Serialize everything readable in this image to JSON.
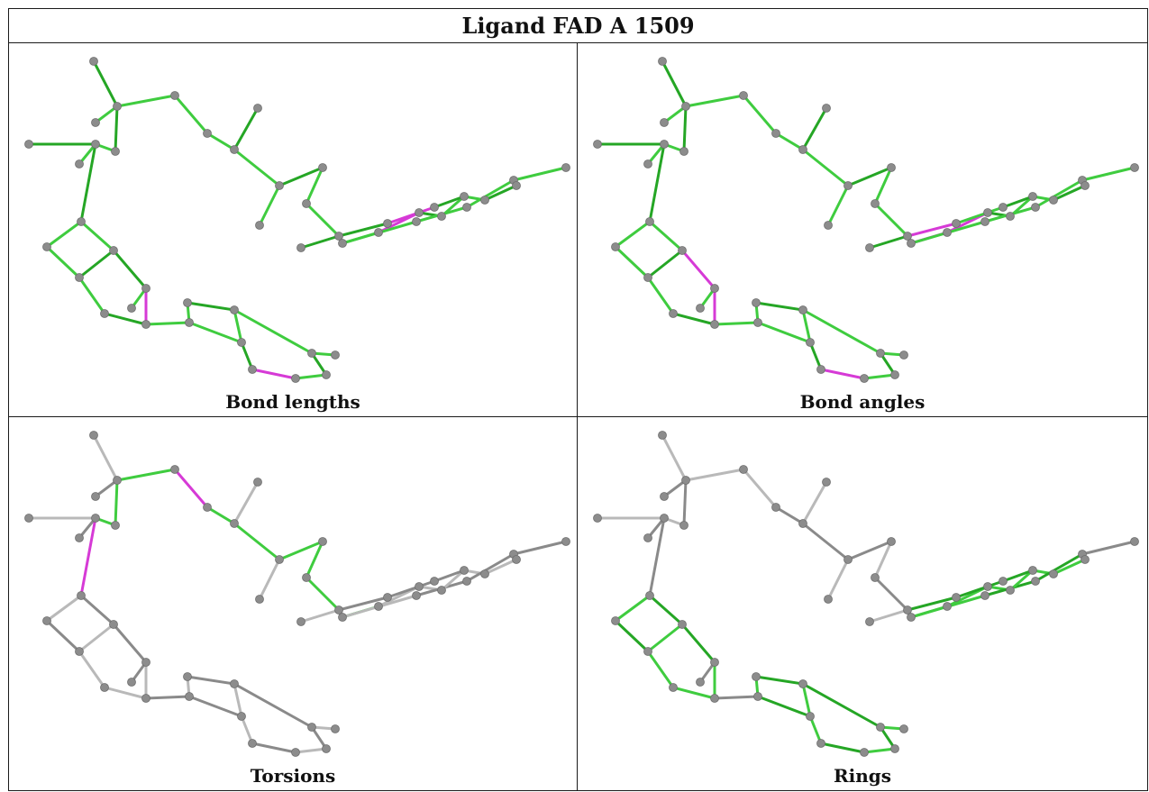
{
  "figure": {
    "title": "Ligand FAD A 1509",
    "panels": [
      {
        "caption": "Bond lengths",
        "highlight": [
          "b_ribose_o4",
          "b_ring_bottom",
          "b_flavin_mid_a",
          "b_flavin_mid_b"
        ],
        "mode": "all-green"
      },
      {
        "caption": "Bond angles",
        "highlight": [
          "b_ribose_c3",
          "b_ribose_o4",
          "b_ring_bottom",
          "b_flavin_left_a",
          "b_flavin_left_b",
          "b_flavin_mid_a"
        ],
        "mode": "all-green"
      },
      {
        "caption": "Torsions",
        "highlight": [
          "b_chain_c",
          "b_link_a"
        ],
        "mode": "torsion"
      },
      {
        "caption": "Rings",
        "highlight": [],
        "mode": "rings"
      }
    ],
    "colors": {
      "green": "#3fcc3f",
      "green_dark": "#25a625",
      "gray": "#b9b9b9",
      "gray_dark": "#8a8a8a",
      "magenta": "#d63ad6",
      "atom": "#8c8c8c"
    }
  }
}
